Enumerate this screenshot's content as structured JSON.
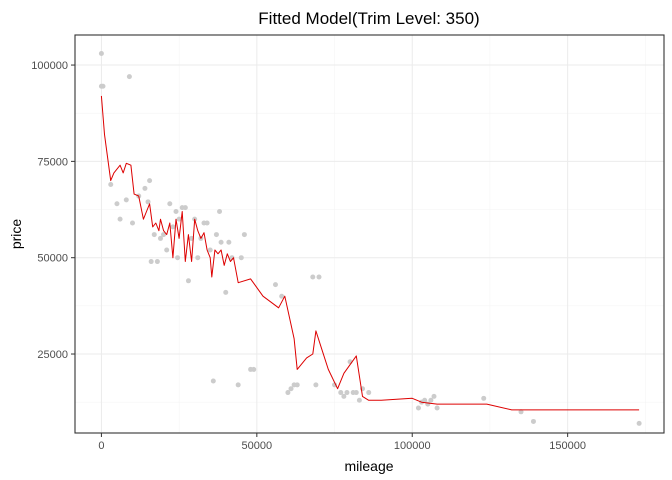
{
  "chart_data": {
    "type": "scatter",
    "title": "Fitted Model(Trim Level: 350)",
    "xlabel": "mileage",
    "ylabel": "price",
    "xlim": [
      -8500,
      181000
    ],
    "ylim": [
      4500,
      107800
    ],
    "x_ticks": [
      0,
      50000,
      100000,
      150000
    ],
    "x_tick_labels": [
      "0",
      "50000",
      "100000",
      "150000"
    ],
    "y_ticks": [
      25000,
      50000,
      75000,
      100000
    ],
    "y_tick_labels": [
      "25000",
      "50000",
      "75000",
      "100000"
    ],
    "grid": true,
    "legend": "none",
    "colors": {
      "points": "#cccccc",
      "fit": "#dd0000",
      "grid_major": "#ebebeb",
      "grid_minor": "#f3f3f3",
      "panel_border": "#333333"
    },
    "series": [
      {
        "kind": "points",
        "x": [
          0,
          0,
          500,
          9000,
          3000,
          5000,
          6000,
          8000,
          10000,
          12000,
          14000,
          15000,
          15500,
          16000,
          17000,
          18000,
          19000,
          20000,
          21000,
          22000,
          23000,
          24000,
          24500,
          25000,
          26000,
          27000,
          28000,
          29000,
          30000,
          31000,
          32000,
          33000,
          34000,
          35000,
          36000,
          37000,
          38000,
          38500,
          40000,
          41000,
          42000,
          44000,
          45000,
          46000,
          48000,
          49000,
          56000,
          58000,
          60000,
          61000,
          62000,
          63000,
          68000,
          69000,
          70000,
          75000,
          77000,
          78000,
          79000,
          80000,
          81000,
          82000,
          83000,
          84000,
          86000,
          102000,
          103000,
          104000,
          105000,
          106000,
          107000,
          108000,
          123000,
          135000,
          139000,
          173000
        ],
        "y": [
          103000,
          94500,
          94500,
          97000,
          69000,
          64000,
          60000,
          65000,
          59000,
          66000,
          68000,
          64500,
          70000,
          49000,
          56000,
          49000,
          55000,
          56000,
          52000,
          64000,
          58000,
          62000,
          50000,
          60000,
          63000,
          63000,
          44000,
          55000,
          60000,
          50000,
          55000,
          59000,
          59000,
          52000,
          18000,
          56000,
          62000,
          54000,
          41000,
          54000,
          50000,
          17000,
          50000,
          56000,
          21000,
          21000,
          43000,
          40000,
          15000,
          16000,
          17000,
          17000,
          45000,
          17000,
          45000,
          17000,
          15000,
          14000,
          15000,
          23000,
          15000,
          15000,
          13000,
          16000,
          15000,
          11000,
          12500,
          13000,
          12000,
          13000,
          14000,
          11000,
          13500,
          10000,
          7500,
          7000
        ]
      },
      {
        "kind": "line",
        "x": [
          0,
          1000,
          2000,
          3000,
          4000,
          6000,
          7000,
          8000,
          9500,
          10500,
          12000,
          13500,
          14500,
          15500,
          16500,
          17500,
          18500,
          19000,
          20000,
          21000,
          22000,
          23000,
          24000,
          25000,
          26000,
          27000,
          28000,
          29000,
          30000,
          31000,
          32000,
          33000,
          34000,
          35000,
          35500,
          36500,
          37500,
          38500,
          39500,
          40500,
          41500,
          42500,
          44000,
          48000,
          52000,
          57000,
          59000,
          62000,
          63000,
          66000,
          68000,
          69000,
          71000,
          73000,
          76000,
          78000,
          82000,
          84000,
          86000,
          90000,
          100000,
          103000,
          108000,
          124000,
          132000,
          173000
        ],
        "y": [
          92000,
          82000,
          76000,
          70000,
          72000,
          74000,
          72000,
          74500,
          74000,
          66500,
          66000,
          60000,
          62000,
          64000,
          58000,
          59000,
          57000,
          60000,
          57000,
          56000,
          59000,
          50000,
          60000,
          55000,
          62000,
          49000,
          56000,
          49000,
          60000,
          57000,
          55000,
          56500,
          52000,
          50000,
          45000,
          52000,
          51000,
          52000,
          48000,
          51000,
          49000,
          50000,
          43500,
          44500,
          40000,
          37000,
          40000,
          29000,
          21000,
          24000,
          25000,
          31000,
          26000,
          21000,
          16000,
          20000,
          24500,
          14000,
          13000,
          13000,
          13500,
          12500,
          12000,
          12000,
          10500,
          10500
        ]
      }
    ]
  }
}
